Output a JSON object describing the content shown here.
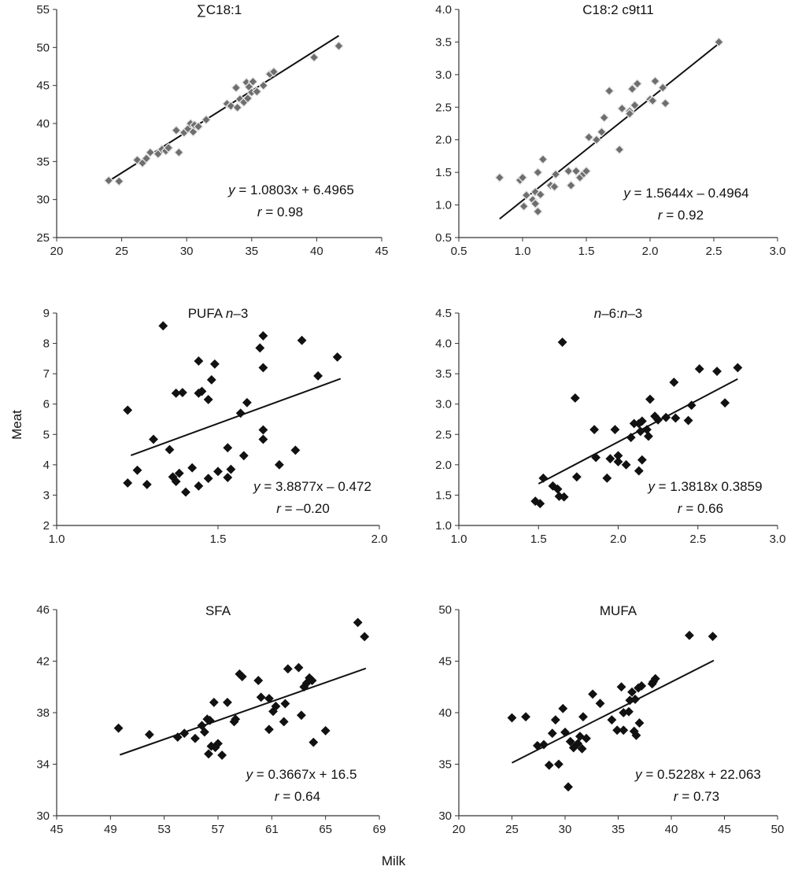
{
  "ylabel": "Meat",
  "xlabel": "Milk",
  "chart_data": [
    {
      "type": "scatter",
      "title": "∑C18:1",
      "equation": "y = 1.0803x + 6.4965",
      "r_text": "r = 0.98",
      "xlim": [
        20,
        45
      ],
      "xticks": [
        20,
        25,
        30,
        35,
        40,
        45
      ],
      "xdec": 0,
      "ylim": [
        25,
        55
      ],
      "yticks": [
        25,
        30,
        35,
        40,
        45,
        50,
        55
      ],
      "ydec": 0,
      "trend": {
        "slope": 1.0803,
        "intercept": 6.4965,
        "x_range": [
          24.0,
          41.7
        ]
      },
      "marker": "open",
      "points": [
        [
          24.0,
          32.5
        ],
        [
          24.8,
          32.4
        ],
        [
          26.2,
          35.2
        ],
        [
          26.6,
          34.8
        ],
        [
          26.9,
          35.4
        ],
        [
          27.2,
          36.2
        ],
        [
          27.8,
          36.0
        ],
        [
          28.1,
          36.6
        ],
        [
          28.4,
          36.4
        ],
        [
          28.6,
          36.8
        ],
        [
          29.2,
          39.1
        ],
        [
          29.4,
          36.2
        ],
        [
          29.8,
          38.8
        ],
        [
          30.1,
          39.3
        ],
        [
          30.3,
          40.0
        ],
        [
          30.5,
          38.9
        ],
        [
          30.6,
          39.8
        ],
        [
          30.9,
          39.6
        ],
        [
          31.5,
          40.5
        ],
        [
          33.1,
          42.6
        ],
        [
          33.4,
          42.3
        ],
        [
          33.8,
          44.7
        ],
        [
          33.9,
          42.1
        ],
        [
          34.1,
          43.2
        ],
        [
          34.4,
          42.8
        ],
        [
          34.6,
          45.4
        ],
        [
          34.7,
          43.3
        ],
        [
          34.8,
          44.8
        ],
        [
          35.0,
          44.1
        ],
        [
          35.1,
          45.5
        ],
        [
          35.4,
          44.2
        ],
        [
          35.9,
          45.0
        ],
        [
          36.4,
          46.5
        ],
        [
          36.7,
          46.8
        ],
        [
          39.8,
          48.7
        ],
        [
          41.7,
          50.2
        ]
      ]
    },
    {
      "type": "scatter",
      "title": "C18:2 c9t11",
      "equation": "y = 1.5644x – 0.4964",
      "r_text": "r = 0.92",
      "xlim": [
        0.5,
        3.0
      ],
      "xticks": [
        0.5,
        1.0,
        1.5,
        2.0,
        2.5,
        3.0
      ],
      "xdec": 1,
      "ylim": [
        0.5,
        4.0
      ],
      "yticks": [
        0.5,
        1.0,
        1.5,
        2.0,
        2.5,
        3.0,
        3.5,
        4.0
      ],
      "ydec": 1,
      "trend": {
        "slope": 1.5644,
        "intercept": -0.4964,
        "x_range": [
          0.82,
          2.55
        ]
      },
      "marker": "open",
      "points": [
        [
          0.82,
          1.42
        ],
        [
          0.98,
          1.38
        ],
        [
          1.0,
          1.42
        ],
        [
          1.01,
          0.98
        ],
        [
          1.03,
          1.15
        ],
        [
          1.08,
          1.08
        ],
        [
          1.1,
          1.02
        ],
        [
          1.1,
          1.2
        ],
        [
          1.12,
          0.9
        ],
        [
          1.12,
          1.5
        ],
        [
          1.14,
          1.16
        ],
        [
          1.16,
          1.7
        ],
        [
          1.22,
          1.3
        ],
        [
          1.25,
          1.28
        ],
        [
          1.26,
          1.47
        ],
        [
          1.36,
          1.52
        ],
        [
          1.38,
          1.3
        ],
        [
          1.42,
          1.52
        ],
        [
          1.45,
          1.42
        ],
        [
          1.48,
          1.48
        ],
        [
          1.5,
          1.52
        ],
        [
          1.52,
          2.04
        ],
        [
          1.58,
          2.0
        ],
        [
          1.62,
          2.12
        ],
        [
          1.64,
          2.34
        ],
        [
          1.68,
          2.75
        ],
        [
          1.76,
          1.85
        ],
        [
          1.78,
          2.48
        ],
        [
          1.84,
          2.44
        ],
        [
          1.84,
          2.4
        ],
        [
          1.86,
          2.78
        ],
        [
          1.88,
          2.53
        ],
        [
          1.9,
          2.86
        ],
        [
          2.0,
          2.62
        ],
        [
          2.02,
          2.6
        ],
        [
          2.04,
          2.9
        ],
        [
          2.1,
          2.8
        ],
        [
          2.12,
          2.56
        ],
        [
          2.54,
          3.5
        ]
      ]
    },
    {
      "type": "scatter",
      "title": "PUFA n–3",
      "equation": "y = 3.8877x – 0.472",
      "r_text": "r = –0.20",
      "xlim": [
        1.0,
        2.0
      ],
      "xticks": [
        1.0,
        1.5,
        2.0
      ],
      "xdec": 1,
      "ylim": [
        2,
        9
      ],
      "yticks": [
        2,
        3,
        4,
        5,
        6,
        7,
        8,
        9
      ],
      "ydec": 0,
      "trend": {
        "slope": 3.8877,
        "intercept": -0.472,
        "x_range": [
          1.23,
          1.88
        ]
      },
      "marker": "filled",
      "points": [
        [
          1.22,
          5.8
        ],
        [
          1.22,
          3.4
        ],
        [
          1.25,
          3.82
        ],
        [
          1.28,
          3.35
        ],
        [
          1.3,
          4.84
        ],
        [
          1.33,
          8.58
        ],
        [
          1.35,
          4.5
        ],
        [
          1.36,
          3.6
        ],
        [
          1.37,
          6.36
        ],
        [
          1.37,
          3.45
        ],
        [
          1.38,
          3.72
        ],
        [
          1.39,
          6.38
        ],
        [
          1.4,
          3.1
        ],
        [
          1.42,
          3.9
        ],
        [
          1.44,
          3.3
        ],
        [
          1.44,
          7.42
        ],
        [
          1.44,
          6.36
        ],
        [
          1.45,
          6.42
        ],
        [
          1.47,
          6.15
        ],
        [
          1.47,
          3.55
        ],
        [
          1.48,
          6.8
        ],
        [
          1.49,
          7.32
        ],
        [
          1.5,
          3.78
        ],
        [
          1.53,
          4.56
        ],
        [
          1.53,
          3.58
        ],
        [
          1.54,
          3.85
        ],
        [
          1.57,
          5.7
        ],
        [
          1.58,
          4.3
        ],
        [
          1.59,
          6.05
        ],
        [
          1.63,
          7.85
        ],
        [
          1.64,
          8.25
        ],
        [
          1.64,
          7.2
        ],
        [
          1.64,
          5.15
        ],
        [
          1.64,
          4.84
        ],
        [
          1.69,
          4.0
        ],
        [
          1.74,
          4.48
        ],
        [
          1.76,
          8.1
        ],
        [
          1.81,
          6.93
        ],
        [
          1.87,
          7.55
        ]
      ]
    },
    {
      "type": "scatter",
      "title": "n–6:n–3",
      "equation": "y = 1.3818x 0.3859",
      "r_text": "r = 0.66",
      "xlim": [
        1.0,
        3.0
      ],
      "xticks": [
        1.0,
        1.5,
        2.0,
        2.5,
        3.0
      ],
      "xdec": 1,
      "ylim": [
        1.0,
        4.5
      ],
      "yticks": [
        1.0,
        1.5,
        2.0,
        2.5,
        3.0,
        3.5,
        4.0,
        4.5
      ],
      "ydec": 1,
      "trend": {
        "slope": 1.3818,
        "intercept": -0.3859,
        "x_range": [
          1.5,
          2.75
        ]
      },
      "marker": "filled",
      "points": [
        [
          1.48,
          1.4
        ],
        [
          1.51,
          1.36
        ],
        [
          1.53,
          1.78
        ],
        [
          1.59,
          1.65
        ],
        [
          1.62,
          1.6
        ],
        [
          1.63,
          1.48
        ],
        [
          1.65,
          4.02
        ],
        [
          1.66,
          1.47
        ],
        [
          1.73,
          3.1
        ],
        [
          1.74,
          1.8
        ],
        [
          1.85,
          2.58
        ],
        [
          1.86,
          2.12
        ],
        [
          1.93,
          1.78
        ],
        [
          1.95,
          2.1
        ],
        [
          1.98,
          2.58
        ],
        [
          2.0,
          2.15
        ],
        [
          2.0,
          2.05
        ],
        [
          2.05,
          2.0
        ],
        [
          2.08,
          2.45
        ],
        [
          2.1,
          2.68
        ],
        [
          2.13,
          2.68
        ],
        [
          2.13,
          1.9
        ],
        [
          2.14,
          2.55
        ],
        [
          2.15,
          2.72
        ],
        [
          2.15,
          2.08
        ],
        [
          2.18,
          2.58
        ],
        [
          2.19,
          2.47
        ],
        [
          2.2,
          3.08
        ],
        [
          2.23,
          2.8
        ],
        [
          2.25,
          2.74
        ],
        [
          2.3,
          2.78
        ],
        [
          2.35,
          3.36
        ],
        [
          2.36,
          2.77
        ],
        [
          2.44,
          2.73
        ],
        [
          2.46,
          2.98
        ],
        [
          2.51,
          3.58
        ],
        [
          2.62,
          3.54
        ],
        [
          2.67,
          3.02
        ],
        [
          2.75,
          3.6
        ]
      ]
    },
    {
      "type": "scatter",
      "title": "SFA",
      "equation": "y = 0.3667x + 16.5",
      "r_text": "r = 0.64",
      "xlim": [
        45,
        69
      ],
      "xticks": [
        45,
        49,
        53,
        57,
        61,
        65,
        69
      ],
      "xdec": 0,
      "ylim": [
        30,
        46
      ],
      "yticks": [
        30,
        34,
        38,
        42,
        46
      ],
      "ydec": 0,
      "trend": {
        "slope": 0.3667,
        "intercept": 16.5,
        "x_range": [
          49.7,
          68.0
        ]
      },
      "marker": "filled",
      "points": [
        [
          49.6,
          36.8
        ],
        [
          51.9,
          36.3
        ],
        [
          54.0,
          36.1
        ],
        [
          54.5,
          36.4
        ],
        [
          55.3,
          36.0
        ],
        [
          55.8,
          37.0
        ],
        [
          56.0,
          36.5
        ],
        [
          56.2,
          37.5
        ],
        [
          56.3,
          34.8
        ],
        [
          56.4,
          37.4
        ],
        [
          56.5,
          35.4
        ],
        [
          56.7,
          38.8
        ],
        [
          56.8,
          35.3
        ],
        [
          57.0,
          35.6
        ],
        [
          57.3,
          34.7
        ],
        [
          57.7,
          38.8
        ],
        [
          58.2,
          37.3
        ],
        [
          58.3,
          37.5
        ],
        [
          58.6,
          41.0
        ],
        [
          58.8,
          40.8
        ],
        [
          60.0,
          40.5
        ],
        [
          60.2,
          39.2
        ],
        [
          60.8,
          39.1
        ],
        [
          60.8,
          36.7
        ],
        [
          61.1,
          38.1
        ],
        [
          61.3,
          38.5
        ],
        [
          61.9,
          37.3
        ],
        [
          62.0,
          38.7
        ],
        [
          62.2,
          41.4
        ],
        [
          63.0,
          41.5
        ],
        [
          63.2,
          37.8
        ],
        [
          63.4,
          40.0
        ],
        [
          63.6,
          40.3
        ],
        [
          63.8,
          40.7
        ],
        [
          64.0,
          40.5
        ],
        [
          64.1,
          35.7
        ],
        [
          65.0,
          36.6
        ],
        [
          67.4,
          45.0
        ],
        [
          67.9,
          43.9
        ]
      ]
    },
    {
      "type": "scatter",
      "title": "MUFA",
      "equation": "y = 0.5228x + 22.063",
      "r_text": "r = 0.73",
      "xlim": [
        20,
        50
      ],
      "xticks": [
        20,
        25,
        30,
        35,
        40,
        45,
        50
      ],
      "xdec": 0,
      "ylim": [
        30,
        50
      ],
      "yticks": [
        30,
        35,
        40,
        45,
        50
      ],
      "ydec": 0,
      "trend": {
        "slope": 0.5228,
        "intercept": 22.063,
        "x_range": [
          25.0,
          44.0
        ]
      },
      "marker": "filled",
      "points": [
        [
          25.0,
          39.5
        ],
        [
          26.3,
          39.6
        ],
        [
          27.4,
          36.8
        ],
        [
          28.0,
          36.9
        ],
        [
          28.5,
          34.9
        ],
        [
          28.8,
          38.0
        ],
        [
          29.1,
          39.3
        ],
        [
          29.4,
          35.0
        ],
        [
          29.8,
          40.4
        ],
        [
          30.0,
          38.1
        ],
        [
          30.3,
          32.8
        ],
        [
          30.5,
          37.2
        ],
        [
          30.8,
          36.6
        ],
        [
          31.2,
          37.0
        ],
        [
          31.4,
          37.7
        ],
        [
          31.6,
          36.5
        ],
        [
          31.7,
          39.6
        ],
        [
          32.0,
          37.5
        ],
        [
          32.6,
          41.8
        ],
        [
          33.3,
          40.9
        ],
        [
          34.4,
          39.3
        ],
        [
          34.9,
          38.3
        ],
        [
          35.3,
          42.5
        ],
        [
          35.5,
          38.3
        ],
        [
          35.5,
          40.0
        ],
        [
          36.0,
          40.1
        ],
        [
          36.1,
          41.2
        ],
        [
          36.3,
          42.0
        ],
        [
          36.5,
          38.2
        ],
        [
          36.6,
          41.3
        ],
        [
          36.7,
          37.8
        ],
        [
          36.9,
          42.4
        ],
        [
          37.0,
          39.0
        ],
        [
          37.2,
          42.6
        ],
        [
          38.2,
          42.8
        ],
        [
          38.3,
          43.0
        ],
        [
          38.5,
          43.3
        ],
        [
          41.7,
          47.5
        ],
        [
          43.9,
          47.4
        ]
      ]
    }
  ]
}
